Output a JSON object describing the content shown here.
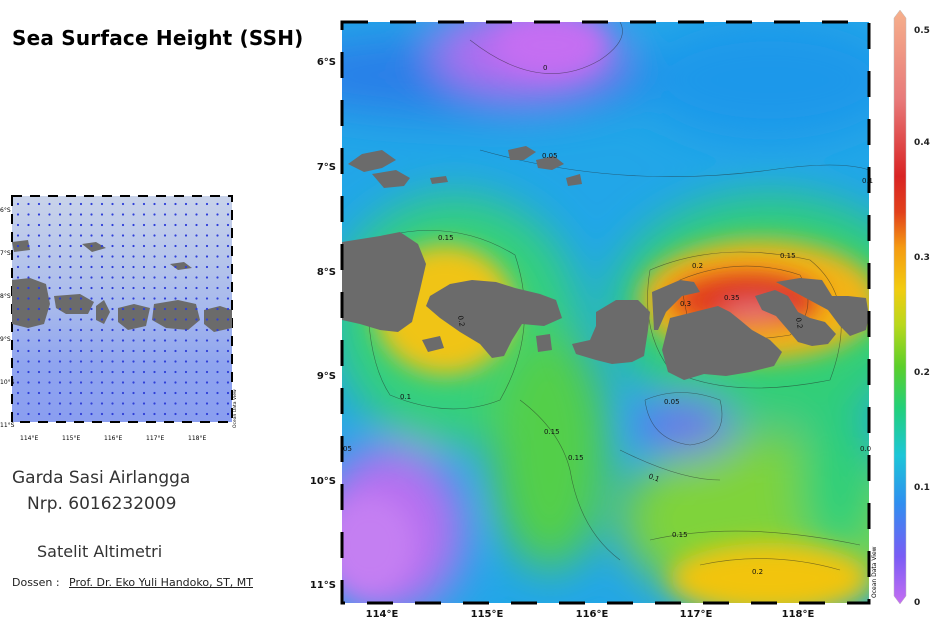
{
  "title": "Sea Surface Height (SSH)",
  "author": {
    "name": "Garda Sasi Airlangga",
    "nrp": "Nrp. 6016232009"
  },
  "course": "Satelit Altimetri",
  "lecturer": {
    "label": "Dossen :",
    "name": "Prof. Dr. Eko Yuli Handoko, ST, MT"
  },
  "main_map": {
    "lat_labels": [
      "6°S",
      "7°S",
      "8°S",
      "9°S",
      "10°S",
      "11°S"
    ],
    "lon_labels": [
      "114°E",
      "115°E",
      "116°E",
      "117°E",
      "118°E"
    ],
    "contour_labels": [
      "0",
      "0.05",
      "0.15",
      "0.2",
      "0.15",
      "0.2",
      "0.3",
      "0.35",
      "0.2",
      "0.1",
      "0.05",
      "0.15",
      "0.15",
      "0.1",
      "0.15",
      "0.2",
      "05",
      "0.1",
      "0.0"
    ],
    "watermark": "Ocean Data View"
  },
  "colorbar": {
    "ticks": [
      "0.5",
      "0.4",
      "0.3",
      "0.2",
      "0.1",
      "0"
    ],
    "min": 0,
    "max": 0.5,
    "colors": [
      "#c56ef2",
      "#7a5cf5",
      "#2f8ff0",
      "#1cc6d8",
      "#22d07a",
      "#5ccf2a",
      "#b9d81c",
      "#f2cc10",
      "#f59b12",
      "#e2401b",
      "#d92424",
      "#e87a7a",
      "#f6b08c"
    ]
  },
  "thumbnail": {
    "lat_labels": [
      "6°S",
      "7°S",
      "8°S",
      "9°S",
      "10°S",
      "11°S"
    ],
    "lon_labels": [
      "114°E",
      "115°E",
      "116°E",
      "117°E",
      "118°E"
    ],
    "watermark": "Ocean Data View"
  },
  "colors": {
    "land": "#6b6b6b",
    "thumb_sea": "#9fb3e8",
    "thumb_dots": "#2f3fd8"
  }
}
